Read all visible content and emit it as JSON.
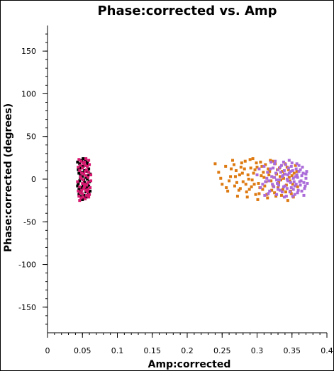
{
  "chart_data": {
    "type": "scatter",
    "title": "Phase:corrected vs. Amp",
    "xlabel": "Amp:corrected",
    "ylabel": "Phase:corrected (degrees)",
    "xlim": [
      0,
      0.4
    ],
    "ylim": [
      -180,
      180
    ],
    "x_ticks": [
      0,
      0.05,
      0.1,
      0.15,
      0.2,
      0.25,
      0.3,
      0.35,
      0.4
    ],
    "x_tick_labels": [
      "0",
      "0.05",
      "0.1",
      "0.15",
      "0.2",
      "0.25",
      "0.3",
      "0.35",
      "0.4"
    ],
    "y_ticks": [
      150,
      100,
      50,
      0,
      -50,
      -100,
      -150
    ],
    "y_tick_labels": [
      "150",
      "100",
      "50",
      "0",
      "-50",
      "-100",
      "-150"
    ],
    "grid": false,
    "legend": "none",
    "series": [
      {
        "color": "#000000",
        "values": [
          [
            0.043,
            20
          ],
          [
            0.045,
            -18
          ],
          [
            0.047,
            5
          ],
          [
            0.049,
            -10
          ],
          [
            0.051,
            15
          ],
          [
            0.053,
            -22
          ],
          [
            0.055,
            2
          ],
          [
            0.057,
            -6
          ],
          [
            0.059,
            12
          ],
          [
            0.046,
            -2
          ],
          [
            0.048,
            -14
          ],
          [
            0.05,
            8
          ],
          [
            0.052,
            -19
          ],
          [
            0.054,
            21
          ],
          [
            0.056,
            -9
          ],
          [
            0.058,
            4
          ],
          [
            0.044,
            -5
          ],
          [
            0.046,
            18
          ],
          [
            0.05,
            -24
          ],
          [
            0.053,
            10
          ],
          [
            0.055,
            -15
          ],
          [
            0.057,
            19
          ],
          [
            0.06,
            -3
          ],
          [
            0.045,
            7
          ],
          [
            0.047,
            -20
          ],
          [
            0.049,
            22
          ],
          [
            0.051,
            -7
          ],
          [
            0.053,
            16
          ],
          [
            0.055,
            -12
          ],
          [
            0.057,
            0
          ],
          [
            0.059,
            -17
          ],
          [
            0.061,
            6
          ],
          [
            0.043,
            -8
          ],
          [
            0.048,
            13
          ],
          [
            0.052,
            -1
          ],
          [
            0.056,
            -21
          ],
          [
            0.058,
            17
          ],
          [
            0.044,
            11
          ],
          [
            0.046,
            -16
          ],
          [
            0.05,
            3
          ],
          [
            0.054,
            -11
          ],
          [
            0.049,
            -23
          ],
          [
            0.051,
            24
          ],
          [
            0.047,
            1
          ],
          [
            0.055,
            20
          ],
          [
            0.059,
            -8
          ],
          [
            0.045,
            -12
          ],
          [
            0.053,
            -4
          ],
          [
            0.057,
            9
          ],
          [
            0.061,
            -14
          ]
        ]
      },
      {
        "color": "#d6186f",
        "values": [
          [
            0.044,
            14
          ],
          [
            0.046,
            -9
          ],
          [
            0.048,
            21
          ],
          [
            0.05,
            -17
          ],
          [
            0.052,
            6
          ],
          [
            0.054,
            -23
          ],
          [
            0.056,
            11
          ],
          [
            0.058,
            -4
          ],
          [
            0.06,
            17
          ],
          [
            0.045,
            -20
          ],
          [
            0.047,
            3
          ],
          [
            0.049,
            -13
          ],
          [
            0.051,
            19
          ],
          [
            0.053,
            -6
          ],
          [
            0.055,
            24
          ],
          [
            0.057,
            -15
          ],
          [
            0.059,
            8
          ],
          [
            0.062,
            -2
          ],
          [
            0.043,
            -3
          ],
          [
            0.046,
            10
          ],
          [
            0.048,
            -22
          ],
          [
            0.05,
            13
          ],
          [
            0.052,
            -11
          ],
          [
            0.054,
            16
          ],
          [
            0.056,
            -19
          ],
          [
            0.058,
            2
          ],
          [
            0.061,
            -10
          ],
          [
            0.045,
            23
          ],
          [
            0.047,
            -16
          ],
          [
            0.049,
            7
          ],
          [
            0.051,
            -1
          ],
          [
            0.053,
            20
          ],
          [
            0.055,
            -13
          ],
          [
            0.057,
            15
          ],
          [
            0.059,
            -21
          ],
          [
            0.062,
            5
          ],
          [
            0.044,
            -14
          ],
          [
            0.048,
            1
          ],
          [
            0.052,
            18
          ],
          [
            0.056,
            -7
          ],
          [
            0.06,
            -18
          ],
          [
            0.046,
            -25
          ],
          [
            0.05,
            -5
          ],
          [
            0.054,
            9
          ],
          [
            0.058,
            -12
          ],
          [
            0.047,
            16
          ],
          [
            0.051,
            -21
          ],
          [
            0.055,
            4
          ],
          [
            0.059,
            22
          ],
          [
            0.053,
            -9
          ]
        ]
      },
      {
        "color": "#dd7a12",
        "values": [
          [
            0.24,
            18
          ],
          [
            0.245,
            8
          ],
          [
            0.25,
            -6
          ],
          [
            0.255,
            15
          ],
          [
            0.258,
            -14
          ],
          [
            0.262,
            3
          ],
          [
            0.265,
            22
          ],
          [
            0.268,
            -8
          ],
          [
            0.27,
            10
          ],
          [
            0.272,
            -20
          ],
          [
            0.275,
            5
          ],
          [
            0.278,
            19
          ],
          [
            0.28,
            -3
          ],
          [
            0.282,
            12
          ],
          [
            0.285,
            -15
          ],
          [
            0.288,
            0
          ],
          [
            0.29,
            23
          ],
          [
            0.292,
            -9
          ],
          [
            0.295,
            7
          ],
          [
            0.298,
            -18
          ],
          [
            0.3,
            14
          ],
          [
            0.302,
            -5
          ],
          [
            0.305,
            20
          ],
          [
            0.308,
            -12
          ],
          [
            0.31,
            2
          ],
          [
            0.312,
            17
          ],
          [
            0.315,
            -22
          ],
          [
            0.318,
            9
          ],
          [
            0.32,
            -2
          ],
          [
            0.322,
            21
          ],
          [
            0.325,
            -16
          ],
          [
            0.328,
            6
          ],
          [
            0.33,
            -10
          ],
          [
            0.332,
            13
          ],
          [
            0.335,
            -19
          ],
          [
            0.338,
            1
          ],
          [
            0.34,
            18
          ],
          [
            0.342,
            -7
          ],
          [
            0.345,
            11
          ],
          [
            0.348,
            -14
          ],
          [
            0.35,
            4
          ],
          [
            0.352,
            -21
          ],
          [
            0.355,
            16
          ],
          [
            0.248,
            1
          ],
          [
            0.256,
            -10
          ],
          [
            0.263,
            12
          ],
          [
            0.271,
            -4
          ],
          [
            0.276,
            -11
          ],
          [
            0.283,
            21
          ],
          [
            0.287,
            5
          ],
          [
            0.293,
            -1
          ],
          [
            0.297,
            11
          ],
          [
            0.303,
            -17
          ],
          [
            0.306,
            4
          ],
          [
            0.311,
            -8
          ],
          [
            0.316,
            12
          ],
          [
            0.321,
            -13
          ],
          [
            0.326,
            18
          ],
          [
            0.331,
            -4
          ],
          [
            0.336,
            9
          ],
          [
            0.341,
            -15
          ],
          [
            0.346,
            2
          ],
          [
            0.351,
            -6
          ],
          [
            0.357,
            9
          ],
          [
            0.26,
            -2
          ],
          [
            0.267,
            17
          ],
          [
            0.274,
            -13
          ],
          [
            0.279,
            7
          ],
          [
            0.286,
            -21
          ],
          [
            0.291,
            13
          ],
          [
            0.296,
            -6
          ],
          [
            0.301,
            -24
          ],
          [
            0.307,
            15
          ],
          [
            0.313,
            -3
          ],
          [
            0.317,
            5
          ],
          [
            0.323,
            -8
          ],
          [
            0.327,
            -20
          ],
          [
            0.333,
            3
          ],
          [
            0.337,
            -12
          ],
          [
            0.343,
            14
          ],
          [
            0.347,
            -2
          ],
          [
            0.353,
            7
          ],
          [
            0.358,
            -9
          ],
          [
            0.284,
            -6
          ],
          [
            0.299,
            19
          ],
          [
            0.314,
            -18
          ],
          [
            0.329,
            11
          ],
          [
            0.344,
            -25
          ],
          [
            0.304,
            -10
          ],
          [
            0.319,
            22
          ],
          [
            0.334,
            -1
          ],
          [
            0.349,
            -17
          ],
          [
            0.289,
            -12
          ],
          [
            0.277,
            14
          ],
          [
            0.269,
            3
          ],
          [
            0.309,
            8
          ],
          [
            0.324,
            2
          ],
          [
            0.339,
            6
          ],
          [
            0.294,
            24
          ]
        ]
      },
      {
        "color": "#ab6bd9",
        "values": [
          [
            0.3,
            5
          ],
          [
            0.305,
            -10
          ],
          [
            0.31,
            15
          ],
          [
            0.312,
            -3
          ],
          [
            0.315,
            8
          ],
          [
            0.318,
            -14
          ],
          [
            0.32,
            20
          ],
          [
            0.322,
            -6
          ],
          [
            0.325,
            2
          ],
          [
            0.328,
            -18
          ],
          [
            0.33,
            11
          ],
          [
            0.332,
            -1
          ],
          [
            0.335,
            16
          ],
          [
            0.338,
            -9
          ],
          [
            0.34,
            6
          ],
          [
            0.342,
            -20
          ],
          [
            0.345,
            13
          ],
          [
            0.348,
            -4
          ],
          [
            0.35,
            19
          ],
          [
            0.352,
            -12
          ],
          [
            0.355,
            3
          ],
          [
            0.358,
            -16
          ],
          [
            0.36,
            9
          ],
          [
            0.362,
            -7
          ],
          [
            0.365,
            14
          ],
          [
            0.368,
            -11
          ],
          [
            0.37,
            1
          ],
          [
            0.372,
            -5
          ],
          [
            0.308,
            -6
          ],
          [
            0.314,
            1
          ],
          [
            0.319,
            12
          ],
          [
            0.324,
            -9
          ],
          [
            0.327,
            7
          ],
          [
            0.333,
            -13
          ],
          [
            0.337,
            4
          ],
          [
            0.341,
            17
          ],
          [
            0.344,
            -2
          ],
          [
            0.347,
            -15
          ],
          [
            0.351,
            10
          ],
          [
            0.354,
            -8
          ],
          [
            0.357,
            18
          ],
          [
            0.361,
            -3
          ],
          [
            0.364,
            4
          ],
          [
            0.367,
            -19
          ],
          [
            0.371,
            9
          ],
          [
            0.316,
            -17
          ],
          [
            0.321,
            3
          ],
          [
            0.326,
            21
          ],
          [
            0.331,
            -7
          ],
          [
            0.336,
            -15
          ],
          [
            0.339,
            10
          ],
          [
            0.343,
            0
          ],
          [
            0.346,
            22
          ],
          [
            0.349,
            -10
          ],
          [
            0.353,
            -3
          ],
          [
            0.356,
            12
          ],
          [
            0.359,
            -13
          ],
          [
            0.363,
            -2
          ],
          [
            0.366,
            7
          ],
          [
            0.369,
            -8
          ],
          [
            0.303,
            12
          ],
          [
            0.311,
            -19
          ],
          [
            0.317,
            -2
          ],
          [
            0.323,
            13
          ],
          [
            0.329,
            -5
          ],
          [
            0.334,
            8
          ],
          [
            0.339,
            -21
          ],
          [
            0.344,
            5
          ],
          [
            0.349,
            15
          ],
          [
            0.354,
            -18
          ],
          [
            0.358,
            2
          ],
          [
            0.362,
            11
          ],
          [
            0.367,
            -4
          ],
          [
            0.34,
            -8
          ],
          [
            0.346,
            7
          ],
          [
            0.352,
            1
          ],
          [
            0.336,
            3
          ],
          [
            0.33,
            -12
          ],
          [
            0.356,
            -6
          ],
          [
            0.36,
            16
          ],
          [
            0.325,
            18
          ],
          [
            0.343,
            -11
          ],
          [
            0.348,
            9
          ],
          [
            0.364,
            -14
          ],
          [
            0.37,
            6
          ],
          [
            0.333,
            14
          ],
          [
            0.351,
            -20
          ],
          [
            0.338,
            20
          ],
          [
            0.357,
            5
          ],
          [
            0.328,
            -1
          ]
        ]
      }
    ]
  }
}
